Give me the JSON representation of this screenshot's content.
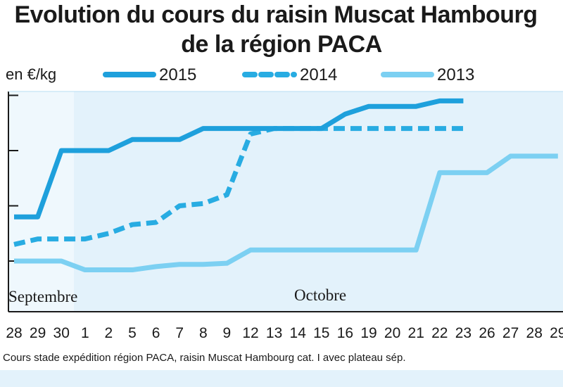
{
  "title_line1": "Evolution du cours du raisin Muscat Hambourg",
  "title_line2": "de la région PACA",
  "unit_label": "en €/kg",
  "source_note": "Cours stade expédition région PACA, raisin Muscat Hambourg cat. I avec plateau sép.",
  "month_labels": [
    "Septembre",
    "Octobre"
  ],
  "colors": {
    "background": "#e3f2fb",
    "s2015": "#1ea0dc",
    "s2014": "#28ace2",
    "s2013": "#7cd0f2"
  },
  "chart_data": {
    "type": "line",
    "title": "Evolution du cours du raisin Muscat Hambourg de la région PACA",
    "ylabel": "en €/kg",
    "ylim": [
      0.8,
      2.8
    ],
    "y_gridlines": [
      1.0,
      1.5,
      2.0,
      2.5
    ],
    "x": [
      "28",
      "29",
      "30",
      "1",
      "2",
      "5",
      "6",
      "7",
      "8",
      "9",
      "12",
      "13",
      "14",
      "15",
      "16",
      "19",
      "20",
      "21",
      "22",
      "23",
      "26",
      "27",
      "28",
      "29"
    ],
    "legend_position": "top",
    "series": [
      {
        "name": "2015",
        "style": "solid",
        "values": [
          1.4,
          1.4,
          2.0,
          2.0,
          2.0,
          2.1,
          2.1,
          2.1,
          2.2,
          2.2,
          2.2,
          2.2,
          2.2,
          2.2,
          2.33,
          2.4,
          2.4,
          2.4,
          2.45,
          2.45,
          null,
          null,
          null,
          null
        ]
      },
      {
        "name": "2014",
        "style": "dashed",
        "values": [
          1.15,
          1.2,
          1.2,
          1.2,
          1.25,
          1.33,
          1.35,
          1.5,
          1.52,
          1.6,
          2.15,
          2.2,
          2.2,
          2.2,
          2.2,
          2.2,
          2.2,
          2.2,
          2.2,
          2.2,
          null,
          null,
          null,
          null
        ]
      },
      {
        "name": "2013",
        "style": "light",
        "values": [
          1.0,
          1.0,
          1.0,
          0.92,
          0.92,
          0.92,
          0.95,
          0.97,
          0.97,
          0.98,
          1.1,
          1.1,
          1.1,
          1.1,
          1.1,
          1.1,
          1.1,
          1.1,
          1.8,
          1.8,
          1.8,
          1.95,
          1.95,
          1.95
        ]
      }
    ]
  }
}
